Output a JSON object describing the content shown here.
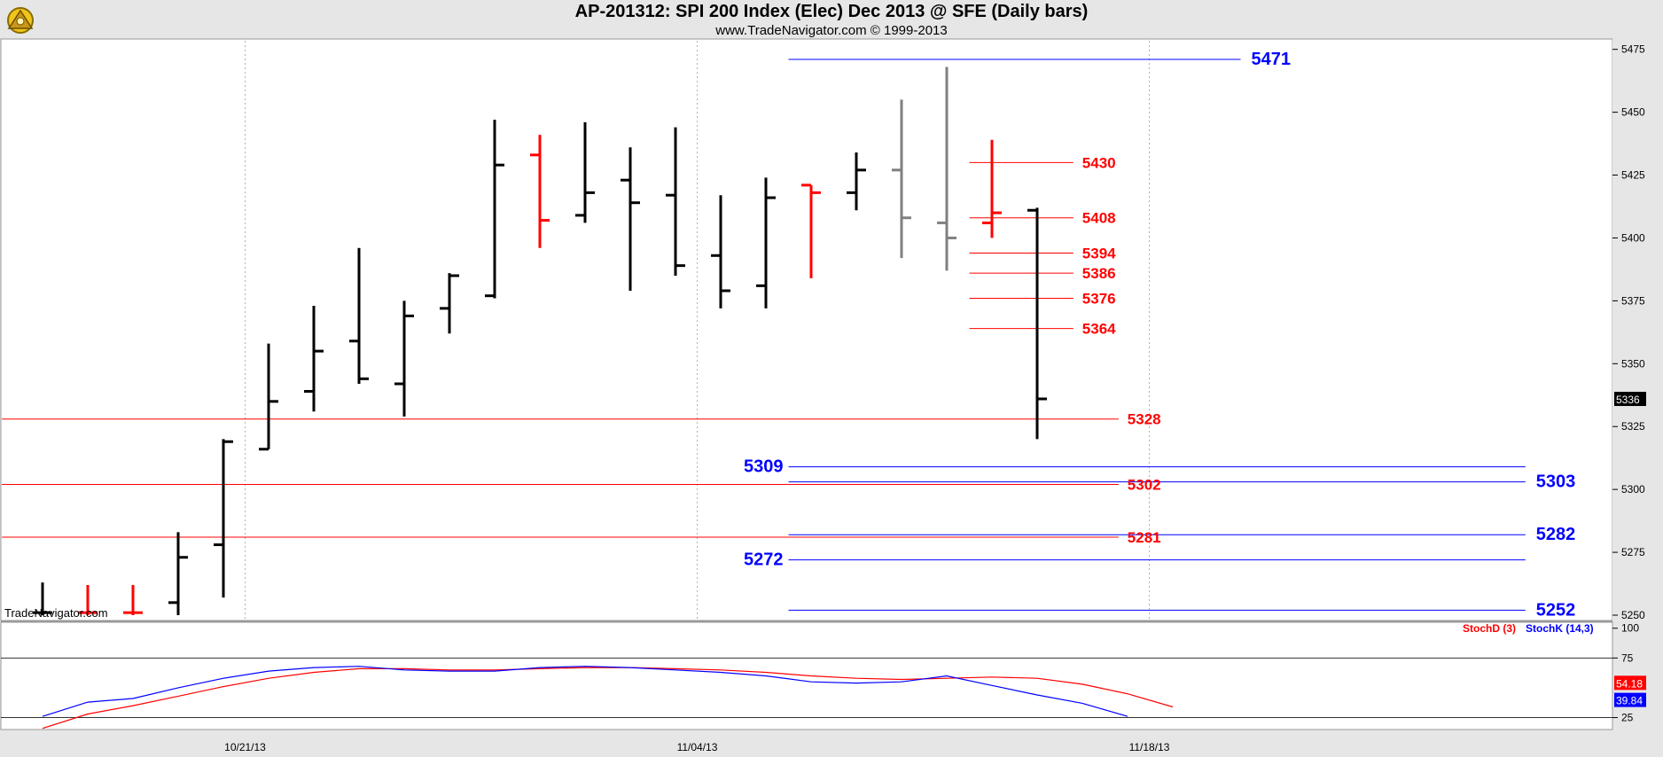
{
  "header": {
    "title": "AP-201312:  SPI 200 Index (Elec) Dec 2013 @ SFE  (Daily bars)",
    "subtitle": "www.TradeNavigator.com © 1999-2013",
    "watermark": "TradeNavigator.com"
  },
  "colors": {
    "up": "#000000",
    "down": "#ff0000",
    "gray": "#808080",
    "red_level": "#ff0000",
    "blue_level": "#0000ff",
    "stoch_d": "#ff0000",
    "stoch_k": "#0000ff"
  },
  "chart_data": [
    {
      "type": "ohlc",
      "ylim": [
        5250,
        5480
      ],
      "yticks": [
        5250,
        5275,
        5300,
        5325,
        5350,
        5375,
        5400,
        5425,
        5450,
        5475
      ],
      "x_labels": [
        {
          "bar": 4.5,
          "label": "10/21/13"
        },
        {
          "bar": 14.5,
          "label": "11/04/13"
        },
        {
          "bar": 24.5,
          "label": "11/18/13"
        }
      ],
      "last_price": "5336",
      "bars": [
        {
          "o": 5251,
          "h": 5263,
          "l": 5250,
          "c": 5251,
          "color": "black"
        },
        {
          "o": 5251,
          "h": 5262,
          "l": 5250,
          "c": 5251,
          "color": "red"
        },
        {
          "o": 5251,
          "h": 5262,
          "l": 5250,
          "c": 5251,
          "color": "red"
        },
        {
          "o": 5255,
          "h": 5283,
          "l": 5250,
          "c": 5273,
          "color": "black"
        },
        {
          "o": 5278,
          "h": 5320,
          "l": 5257,
          "c": 5319,
          "color": "black"
        },
        {
          "o": 5316,
          "h": 5358,
          "l": 5316,
          "c": 5335,
          "color": "black"
        },
        {
          "o": 5339,
          "h": 5373,
          "l": 5331,
          "c": 5355,
          "color": "black"
        },
        {
          "o": 5359,
          "h": 5396,
          "l": 5342,
          "c": 5344,
          "color": "black"
        },
        {
          "o": 5342,
          "h": 5375,
          "l": 5329,
          "c": 5369,
          "color": "black"
        },
        {
          "o": 5372,
          "h": 5386,
          "l": 5362,
          "c": 5385,
          "color": "black"
        },
        {
          "o": 5377,
          "h": 5447,
          "l": 5376,
          "c": 5429,
          "color": "black"
        },
        {
          "o": 5433,
          "h": 5441,
          "l": 5396,
          "c": 5407,
          "color": "red"
        },
        {
          "o": 5409,
          "h": 5446,
          "l": 5406,
          "c": 5418,
          "color": "black"
        },
        {
          "o": 5423,
          "h": 5436,
          "l": 5379,
          "c": 5414,
          "color": "black"
        },
        {
          "o": 5417,
          "h": 5444,
          "l": 5385,
          "c": 5389,
          "color": "black"
        },
        {
          "o": 5393,
          "h": 5417,
          "l": 5372,
          "c": 5379,
          "color": "black"
        },
        {
          "o": 5381,
          "h": 5424,
          "l": 5372,
          "c": 5416,
          "color": "black"
        },
        {
          "o": 5421,
          "h": 5421,
          "l": 5384,
          "c": 5418,
          "color": "red"
        },
        {
          "o": 5418,
          "h": 5434,
          "l": 5411,
          "c": 5427,
          "color": "black"
        },
        {
          "o": 5427,
          "h": 5455,
          "l": 5392,
          "c": 5408,
          "color": "gray"
        },
        {
          "o": 5406,
          "h": 5468,
          "l": 5387,
          "c": 5400,
          "color": "gray"
        },
        {
          "o": 5406,
          "h": 5439,
          "l": 5400,
          "c": 5410,
          "color": "red"
        },
        {
          "o": 5411,
          "h": 5412,
          "l": 5320,
          "c": 5336,
          "color": "black"
        }
      ],
      "levels": [
        {
          "value": 5471,
          "label": "5471",
          "color": "blue",
          "start_bar": 16.5,
          "end_bar": 26.5,
          "label_side": "right"
        },
        {
          "value": 5430,
          "label": "5430",
          "color": "red",
          "start_bar": 20.5,
          "end_bar": 22.8,
          "label_side": "right"
        },
        {
          "value": 5408,
          "label": "5408",
          "color": "red",
          "start_bar": 20.5,
          "end_bar": 22.8,
          "label_side": "right"
        },
        {
          "value": 5394,
          "label": "5394",
          "color": "red",
          "start_bar": 20.5,
          "end_bar": 22.8,
          "label_side": "right"
        },
        {
          "value": 5386,
          "label": "5386",
          "color": "red",
          "start_bar": 20.5,
          "end_bar": 22.8,
          "label_side": "right"
        },
        {
          "value": 5376,
          "label": "5376",
          "color": "red",
          "start_bar": 20.5,
          "end_bar": 22.8,
          "label_side": "right"
        },
        {
          "value": 5364,
          "label": "5364",
          "color": "red",
          "start_bar": 20.5,
          "end_bar": 22.8,
          "label_side": "right"
        },
        {
          "value": 5328,
          "label": "5328",
          "color": "red",
          "start_bar": -0.9,
          "end_bar": 23.8,
          "label_side": "right"
        },
        {
          "value": 5309,
          "label": "5309",
          "color": "blue",
          "start_bar": 16.5,
          "end_bar": 32.8,
          "label_side": "left"
        },
        {
          "value": 5303,
          "label": "5303",
          "color": "blue",
          "start_bar": 16.5,
          "end_bar": 32.8,
          "label_side": "right"
        },
        {
          "value": 5302,
          "label": "5302",
          "color": "red",
          "start_bar": -0.9,
          "end_bar": 23.8,
          "label_side": "right"
        },
        {
          "value": 5282,
          "label": "5282",
          "color": "blue",
          "start_bar": 16.5,
          "end_bar": 32.8,
          "label_side": "right"
        },
        {
          "value": 5281,
          "label": "5281",
          "color": "red",
          "start_bar": -0.9,
          "end_bar": 23.8,
          "label_side": "right"
        },
        {
          "value": 5272,
          "label": "5272",
          "color": "blue",
          "start_bar": 16.5,
          "end_bar": 32.8,
          "label_side": "left"
        },
        {
          "value": 5252,
          "label": "5252",
          "color": "blue",
          "start_bar": 16.5,
          "end_bar": 32.8,
          "label_side": "right"
        }
      ]
    },
    {
      "type": "line",
      "ylim": [
        15,
        105
      ],
      "yticks": [
        25,
        75,
        100
      ],
      "series": [
        {
          "name": "StochD (3)",
          "color": "red",
          "values": [
            16,
            28,
            35,
            43,
            51,
            58,
            63,
            66,
            66,
            65,
            65,
            66,
            67,
            67,
            66,
            65,
            63,
            60,
            58,
            57,
            58,
            59,
            58,
            53,
            45,
            34
          ]
        },
        {
          "name": "StochK (14,3)",
          "color": "blue",
          "values": [
            26,
            38,
            41,
            50,
            58,
            64,
            67,
            68,
            65,
            64,
            64,
            67,
            68,
            67,
            65,
            63,
            60,
            55,
            54,
            55,
            60,
            52,
            44,
            37,
            26
          ]
        }
      ],
      "badges": {
        "d": "54.18",
        "k": "39.84"
      }
    }
  ]
}
